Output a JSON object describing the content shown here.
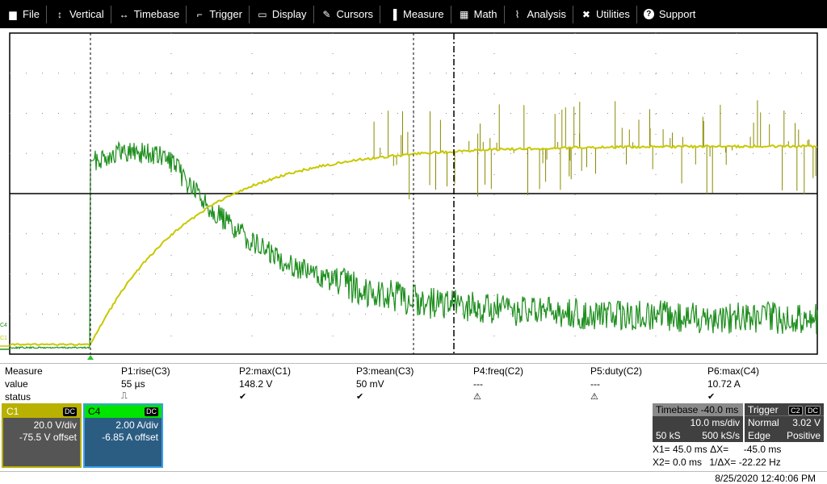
{
  "menu": [
    {
      "label": "File",
      "icon": "file-icon"
    },
    {
      "label": "Vertical",
      "icon": "vertical-arrows-icon"
    },
    {
      "label": "Timebase",
      "icon": "horizontal-arrows-icon"
    },
    {
      "label": "Trigger",
      "icon": "trigger-icon"
    },
    {
      "label": "Display",
      "icon": "display-icon"
    },
    {
      "label": "Cursors",
      "icon": "cursors-icon"
    },
    {
      "label": "Measure",
      "icon": "measure-icon"
    },
    {
      "label": "Math",
      "icon": "math-icon"
    },
    {
      "label": "Analysis",
      "icon": "analysis-icon"
    },
    {
      "label": "Utilities",
      "icon": "utilities-icon"
    },
    {
      "label": "Support",
      "icon": "support-icon"
    }
  ],
  "colors": {
    "c1_trace": "#c8c800",
    "c1_trace_noise": "#8a8a00",
    "c4_trace": "#1f8f1f",
    "c1_box": "#b8b100",
    "c4_box": "#2b5d83",
    "c4_header": "#00e400",
    "grid": "#000000",
    "menubar": "#000000"
  },
  "scope": {
    "c4_marker": "C4",
    "c1_marker": "C1",
    "trigger_marker": "triangle-up",
    "cursor_x1_ms": 45.0,
    "cursor_x2_ms": 0.0,
    "trigger_position_div": -4
  },
  "measure": {
    "row_labels": [
      "Measure",
      "value",
      "status"
    ],
    "columns": [
      {
        "name": "P1:rise(C3)",
        "value": "55 µs",
        "status": "pulse-icon"
      },
      {
        "name": "P2:max(C1)",
        "value": "148.2 V",
        "status": "check-icon"
      },
      {
        "name": "P3:mean(C3)",
        "value": "50 mV",
        "status": "check-icon"
      },
      {
        "name": "P4:freq(C2)",
        "value": "---",
        "status": "warning-icon"
      },
      {
        "name": "P5:duty(C2)",
        "value": "---",
        "status": "warning-icon"
      },
      {
        "name": "P6:max(C4)",
        "value": "10.72 A",
        "status": "check-icon"
      }
    ]
  },
  "channels": {
    "c1": {
      "name": "C1",
      "coupling": "DC",
      "scale": "20.0 V/div",
      "offset": "-75.5 V offset"
    },
    "c4": {
      "name": "C4",
      "coupling": "DC",
      "scale": "2.00 A/div",
      "offset": "-6.85 A offset"
    }
  },
  "timebase": {
    "title": "Timebase -40.0 ms",
    "per_div": "10.0 ms/div",
    "samples": "50 kS",
    "rate": "500 kS/s"
  },
  "trigger": {
    "title": "Trigger",
    "badge1": "C2",
    "badge2": "DC",
    "mode": "Normal",
    "level": "3.02 V",
    "type": "Edge",
    "slope": "Positive"
  },
  "cursors": {
    "x1": "X1= 45.0 ms",
    "dx_label": "ΔX=",
    "dx": "-45.0 ms",
    "x2": "X2= 0.0 ms",
    "inv_dx_label": "1/ΔX=",
    "inv_dx": "-22.22 Hz"
  },
  "datetime": "8/25/2020 12:40:06 PM"
}
